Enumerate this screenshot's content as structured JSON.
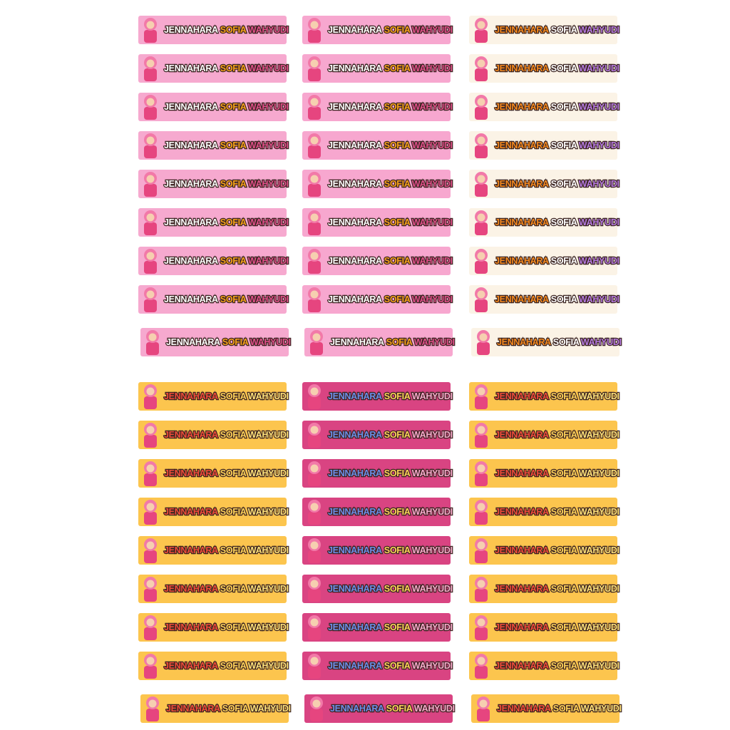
{
  "name": {
    "first": "JENNAHARA",
    "middle": "SOFIA",
    "last": "WAHYUDI"
  },
  "designs": [
    {
      "background": "#f6a9cf",
      "colors": [
        "#ffffff",
        "#f7a21b",
        "#e0508a"
      ]
    },
    {
      "background": "#f7a7cf",
      "colors": [
        "#ffffff",
        "#f7a21b",
        "#e0508a"
      ]
    },
    {
      "background": "#fbf3e6",
      "colors": [
        "#f58a1f",
        "#ffffff",
        "#b57be0"
      ]
    },
    {
      "background": "#fcc54e",
      "colors": [
        "#ef4c3a",
        "#ffd35a",
        "#ffe27a"
      ]
    },
    {
      "background": "#d94482",
      "colors": [
        "#6d8ee8",
        "#ffd35a",
        "#f7a9cb"
      ]
    },
    {
      "background": "#fcc54e",
      "colors": [
        "#ef4c3a",
        "#ffd35a",
        "#ffe27a"
      ]
    }
  ]
}
